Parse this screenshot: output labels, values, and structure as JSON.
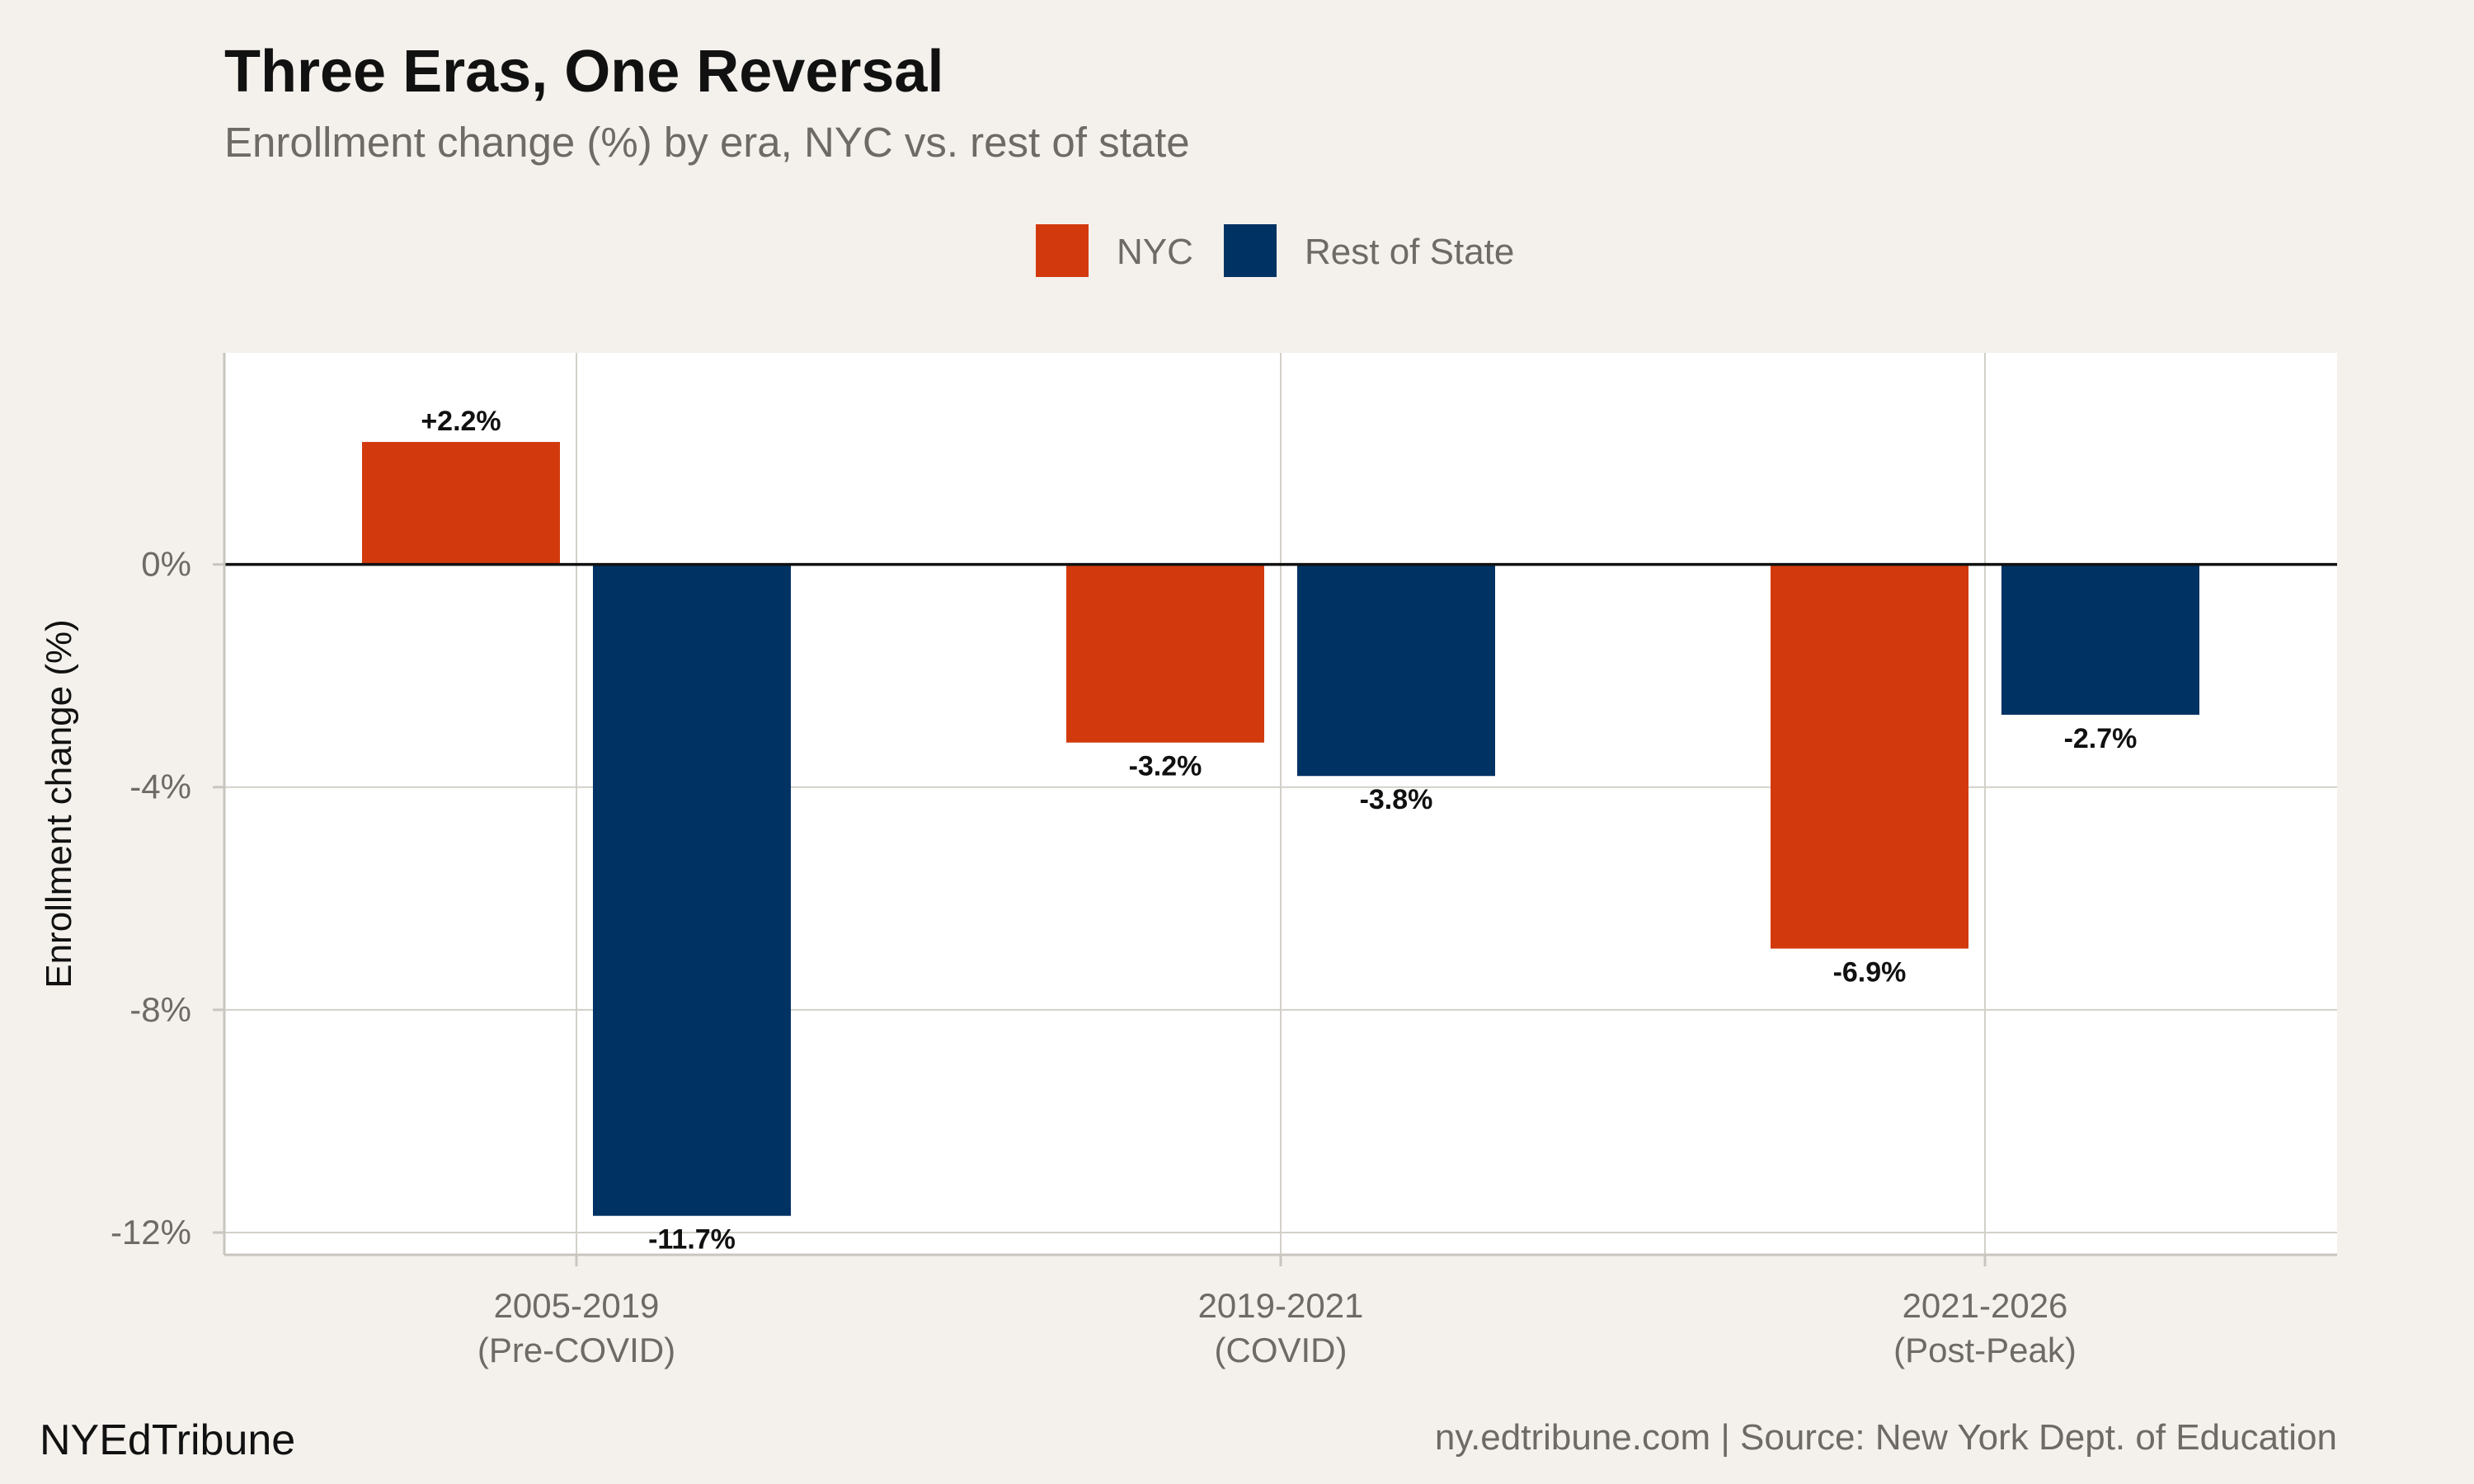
{
  "header": {
    "title": "Three Eras, One Reversal",
    "subtitle": "Enrollment change (%) by era, NYC vs. rest of state"
  },
  "legend": {
    "placement": "top-center",
    "items": [
      {
        "label": "NYC",
        "color": "#D23A0E"
      },
      {
        "label": "Rest of State",
        "color": "#003263"
      }
    ]
  },
  "axes": {
    "ylabel": "Enrollment change (%)",
    "yticks": [
      "0%",
      "-4%",
      "-8%",
      "-12%"
    ]
  },
  "footer": {
    "brand": "NYEdTribune",
    "source": "ny.edtribune.com | Source: New York Dept. of Education"
  },
  "chart_data": {
    "type": "bar",
    "title": "Three Eras, One Reversal",
    "subtitle": "Enrollment change (%) by era, NYC vs. rest of state",
    "xlabel": "",
    "ylabel": "Enrollment change (%)",
    "categories": [
      [
        "2005-2019",
        "(Pre-COVID)"
      ],
      [
        "2019-2021",
        "(COVID)"
      ],
      [
        "2021-2026",
        "(Post-Peak)"
      ]
    ],
    "series": [
      {
        "name": "NYC",
        "color": "#D23A0E",
        "values": [
          2.2,
          -3.2,
          -6.9
        ],
        "labels": [
          "+2.2%",
          "-3.2%",
          "-6.9%"
        ]
      },
      {
        "name": "Rest of State",
        "color": "#003263",
        "values": [
          -11.7,
          -3.8,
          -2.7
        ],
        "labels": [
          "-11.7%",
          "-3.8%",
          "-2.7%"
        ]
      }
    ],
    "yticks": [
      0,
      -4,
      -8,
      -12
    ],
    "ylim": [
      -12.4,
      3.8
    ],
    "grid": true,
    "legend_position": "top-center"
  }
}
